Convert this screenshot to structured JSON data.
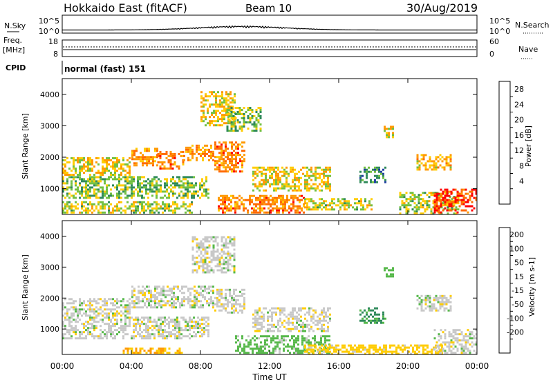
{
  "header": {
    "radar": "Hokkaido East (fitACF)",
    "beam": "Beam 10",
    "date": "30/Aug/2019"
  },
  "strip": {
    "nsky_label": "N.Sky",
    "nsky_ticks": [
      "10^5",
      "10^0"
    ],
    "nsearch_label": "N.Search",
    "freq_label": "Freq.",
    "freq_unit": "[MHz]",
    "freq_ticks": [
      "18",
      "8"
    ],
    "nave_label": "Nave",
    "nave_ticks": [
      "60",
      "0"
    ],
    "cpid_label": "CPID",
    "cpid_value": "normal (fast) 151"
  },
  "chart_data": {
    "type": "heatmap",
    "x_axis": {
      "label": "Time UT",
      "range_hours": [
        0,
        24
      ],
      "tick_hours": [
        0,
        4,
        8,
        12,
        16,
        20,
        24
      ],
      "tick_labels": [
        "00:00",
        "04:00",
        "08:00",
        "12:00",
        "16:00",
        "20:00",
        "00:00"
      ]
    },
    "y_axis": {
      "label": "Slant Range [km]",
      "range_km": [
        180,
        4500
      ],
      "tick_values": [
        1000,
        2000,
        3000,
        4000
      ],
      "tick_labels": [
        "1000",
        "2000",
        "3000",
        "4000"
      ]
    },
    "panels": [
      {
        "name": "power",
        "colorbar_label": "Power [dB]",
        "colorbar_ticks": [
          "28",
          "24",
          "20",
          "16",
          "12",
          "8",
          "4"
        ],
        "colorbar_levels": [
          28,
          24,
          20,
          16,
          12,
          8,
          4
        ],
        "colors": [
          "#ff0000",
          "#ff6a00",
          "#ff9900",
          "#ffcc00",
          "#72c040",
          "#2f8a5a",
          "#1f3fa0",
          "#0000ff"
        ],
        "echo_regions": [
          {
            "t": [
              0.0,
              4.0
            ],
            "r": [
              1400,
              2000
            ],
            "level": 18
          },
          {
            "t": [
              4.0,
              5.5
            ],
            "r": [
              1700,
              2300
            ],
            "level": 22
          },
          {
            "t": [
              5.5,
              7.0
            ],
            "r": [
              1600,
              2200
            ],
            "level": 24
          },
          {
            "t": [
              7.0,
              8.8
            ],
            "r": [
              1900,
              2400
            ],
            "level": 22
          },
          {
            "t": [
              8.8,
              10.6
            ],
            "r": [
              1500,
              2500
            ],
            "level": 24
          },
          {
            "t": [
              8.0,
              10.0
            ],
            "r": [
              3000,
              4100
            ],
            "level": 18
          },
          {
            "t": [
              9.5,
              11.5
            ],
            "r": [
              2800,
              3600
            ],
            "level": 14
          },
          {
            "t": [
              0.0,
              8.5
            ],
            "r": [
              700,
              1400
            ],
            "level": 14
          },
          {
            "t": [
              0.0,
              7.5
            ],
            "r": [
              200,
              600
            ],
            "level": 16
          },
          {
            "t": [
              9.0,
              14.0
            ],
            "r": [
              200,
              800
            ],
            "level": 24
          },
          {
            "t": [
              11.0,
              15.5
            ],
            "r": [
              900,
              1700
            ],
            "level": 18
          },
          {
            "t": [
              14.0,
              18.0
            ],
            "r": [
              300,
              700
            ],
            "level": 16
          },
          {
            "t": [
              17.2,
              18.7
            ],
            "r": [
              1200,
              1700
            ],
            "level": 10
          },
          {
            "t": [
              18.6,
              19.2
            ],
            "r": [
              2600,
              3000
            ],
            "level": 18
          },
          {
            "t": [
              20.5,
              22.5
            ],
            "r": [
              1600,
              2100
            ],
            "level": 20
          },
          {
            "t": [
              19.5,
              23.0
            ],
            "r": [
              200,
              900
            ],
            "level": 16
          },
          {
            "t": [
              21.5,
              24.0
            ],
            "r": [
              200,
              1000
            ],
            "level": 28
          }
        ]
      },
      {
        "name": "velocity",
        "colorbar_label": "Velocity [m s-1]",
        "colorbar_ticks": [
          "200",
          "100",
          "50",
          "15",
          "-15",
          "-50",
          "-100",
          "-200"
        ],
        "colorbar_levels": [
          200,
          100,
          50,
          15,
          -15,
          -50,
          -100,
          -200
        ],
        "colors": [
          "#1020c0",
          "#2050a0",
          "#2f8a5a",
          "#56b84a",
          "#c8c8c8",
          "#ffcc00",
          "#ff9900",
          "#ff6a00",
          "#ff0000"
        ],
        "echo_regions": [
          {
            "t": [
              0.0,
              4.0
            ],
            "r": [
              1400,
              2000
            ],
            "level": 0
          },
          {
            "t": [
              4.0,
              8.8
            ],
            "r": [
              1700,
              2400
            ],
            "level": 0
          },
          {
            "t": [
              8.8,
              10.6
            ],
            "r": [
              1500,
              2300
            ],
            "level": 0
          },
          {
            "t": [
              7.5,
              10.0
            ],
            "r": [
              2800,
              4000
            ],
            "level": 0
          },
          {
            "t": [
              0.0,
              8.5
            ],
            "r": [
              700,
              1400
            ],
            "level": 0
          },
          {
            "t": [
              10.0,
              15.5
            ],
            "r": [
              200,
              800
            ],
            "level": 30
          },
          {
            "t": [
              11.0,
              15.5
            ],
            "r": [
              900,
              1700
            ],
            "level": 0
          },
          {
            "t": [
              17.2,
              18.7
            ],
            "r": [
              1200,
              1700
            ],
            "level": 60
          },
          {
            "t": [
              18.6,
              19.2
            ],
            "r": [
              2700,
              3000
            ],
            "level": 30
          },
          {
            "t": [
              20.5,
              22.5
            ],
            "r": [
              1600,
              2100
            ],
            "level": 0
          },
          {
            "t": [
              3.5,
              7.0
            ],
            "r": [
              200,
              400
            ],
            "level": -50
          },
          {
            "t": [
              14.0,
              22.0
            ],
            "r": [
              200,
              500
            ],
            "level": -30
          },
          {
            "t": [
              21.5,
              24.0
            ],
            "r": [
              200,
              1000
            ],
            "level": 0
          }
        ]
      }
    ]
  }
}
